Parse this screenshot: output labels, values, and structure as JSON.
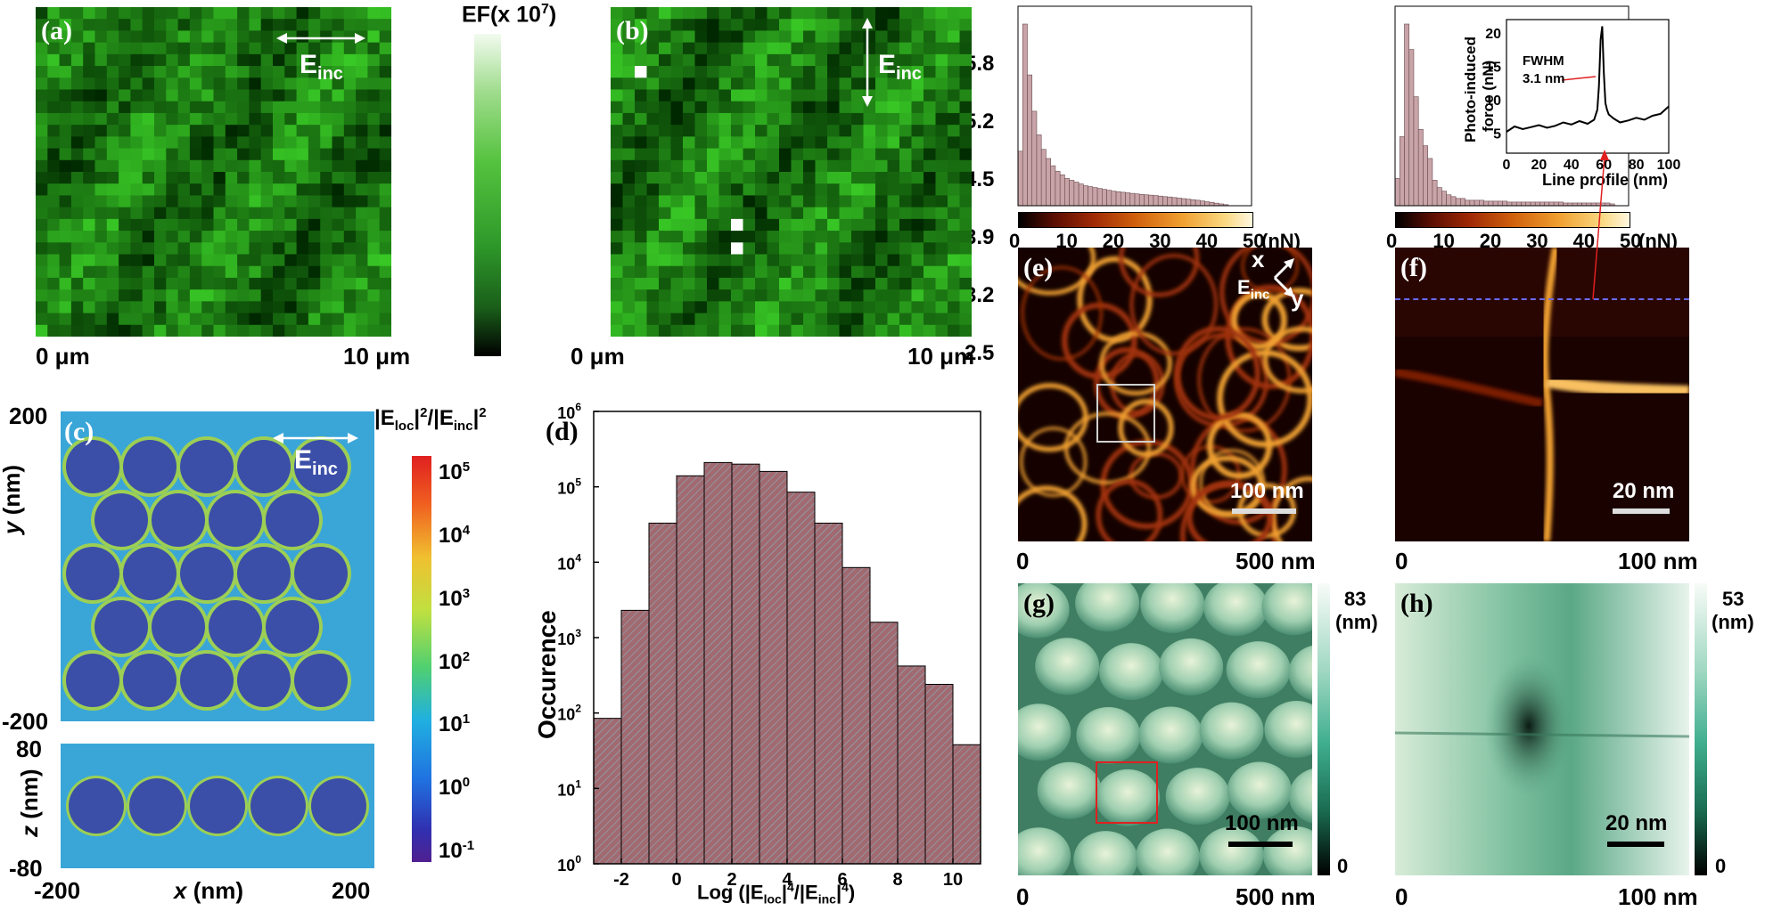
{
  "panels": {
    "a": {
      "label": "(a)",
      "field": "E",
      "field_sub": "inc",
      "x_start": "0 μm",
      "x_end": "10 μm"
    },
    "b": {
      "label": "(b)",
      "field": "E",
      "field_sub": "inc",
      "x_start": "0 μm",
      "x_end": "10 μm"
    },
    "ef_colorbar": {
      "title": "EF(x 10",
      "title_exp": "7",
      "title_close": ")",
      "ticks": [
        "5.8",
        "5.2",
        "4.5",
        "3.9",
        "3.2",
        "2.5"
      ]
    },
    "c": {
      "label": "(c)",
      "field": "E",
      "field_sub": "inc",
      "cb_title": "|E",
      "cb_sub1": "loc",
      "cb_mid": "|",
      "cb_sup1": "2",
      "cb_mid2": "/|E",
      "cb_sub2": "inc",
      "cb_end": "|",
      "cb_sup2": "2",
      "cb_ticks": [
        {
          "b": "10",
          "e": "5"
        },
        {
          "b": "10",
          "e": "4"
        },
        {
          "b": "10",
          "e": "3"
        },
        {
          "b": "10",
          "e": "2"
        },
        {
          "b": "10",
          "e": "1"
        },
        {
          "b": "10",
          "e": "0"
        },
        {
          "b": "10",
          "e": "-1"
        }
      ],
      "y_label_v": "y",
      "y_unit": "(nm)",
      "z_label_v": "z",
      "z_unit": "(nm)",
      "x_label_v": "x",
      "x_unit": "(nm)",
      "y_ticks": [
        "200",
        "-200"
      ],
      "z_ticks": [
        "80",
        "-80"
      ],
      "x_ticks": [
        "-200",
        "200"
      ]
    },
    "d": {
      "label": "(d)",
      "ylabel": "Occurence",
      "xlabel_pre": "Log (|E",
      "xlabel_sub1": "loc",
      "xlabel_mid": "|",
      "xlabel_sup1": "4",
      "xlabel_mid2": "/|E",
      "xlabel_sub2": "inc",
      "xlabel_end": "|",
      "xlabel_sup2": "4",
      "xlabel_close": ")"
    },
    "e": {
      "label": "(e)",
      "x_start": "0",
      "x_end": "500 nm",
      "scale": "100 nm",
      "ax_x": "x",
      "ax_y": "y",
      "field": "E",
      "field_sub": "inc"
    },
    "f": {
      "label": "(f)",
      "x_start": "0",
      "x_end": "100 nm",
      "scale": "20 nm",
      "inset_ylabel1": "Photo-induced",
      "inset_ylabel2": "force (nN)",
      "inset_xlabel": "Line profile (nm)",
      "inset_xticks": [
        "0",
        "20",
        "40",
        "60",
        "80",
        "100"
      ],
      "inset_yticks": [
        "20",
        "15",
        "10",
        "5"
      ],
      "fwhm1": "FWHM",
      "fwhm2": "3.1 nm"
    },
    "g": {
      "label": "(g)",
      "x_start": "0",
      "x_end": "500 nm",
      "scale": "100 nm",
      "cb_max": "83",
      "cb_unit": "(nm)",
      "cb_min": "0"
    },
    "h": {
      "label": "(h)",
      "x_start": "0",
      "x_end": "100 nm",
      "scale": "20 nm",
      "cb_max": "53",
      "cb_unit": "(nm)",
      "cb_min": "0"
    },
    "nn_bar_e": {
      "ticks": [
        "0",
        "10",
        "20",
        "30",
        "40",
        "50"
      ],
      "unit": "(nN)"
    },
    "nn_bar_f": {
      "ticks": [
        "0",
        "10",
        "20",
        "30",
        "40",
        "50"
      ],
      "unit": "(nN)"
    }
  },
  "chart_data": [
    {
      "type": "bar",
      "panel": "d",
      "ylabel": "Occurence",
      "xlabel": "Log (|Eloc|4/|Einc|4)",
      "yscale": "log",
      "ylim": [
        1,
        1000000
      ],
      "xlim": [
        -3,
        11
      ],
      "xticks": [
        "-2",
        "0",
        "2",
        "4",
        "6",
        "8",
        "10"
      ],
      "yticks": [
        {
          "b": "10",
          "e": "6"
        },
        {
          "b": "10",
          "e": "5"
        },
        {
          "b": "10",
          "e": "4"
        },
        {
          "b": "10",
          "e": "3"
        },
        {
          "b": "10",
          "e": "2"
        },
        {
          "b": "10",
          "e": "1"
        },
        {
          "b": "10",
          "e": "0"
        }
      ],
      "bin_width": 1,
      "bin_centers": [
        -2.5,
        -1.5,
        -0.5,
        0.5,
        1.5,
        2.5,
        3.5,
        4.5,
        5.5,
        6.5,
        7.5,
        8.5,
        9.5,
        10.5
      ],
      "values": [
        85,
        2300,
        33000,
        140000,
        210000,
        200000,
        160000,
        85000,
        33000,
        8500,
        1600,
        420,
        240,
        38
      ]
    },
    {
      "type": "bar",
      "panel": "e-histogram",
      "xlim": [
        0,
        50
      ],
      "unit": "nN",
      "bin_width": 1,
      "bin_start": 1,
      "values": [
        30,
        100,
        72,
        52,
        39,
        31,
        26,
        22,
        19,
        17,
        15,
        14,
        13,
        12,
        11,
        10.5,
        10,
        9.5,
        9,
        8.5,
        8,
        7.7,
        7.4,
        7.1,
        6.8,
        6.5,
        6.2,
        6,
        5.8,
        5.6,
        5.3,
        5,
        4.8,
        4.5,
        4.2,
        3.9,
        3.6,
        3.3,
        3,
        2.6,
        2.2,
        1.8,
        1.4,
        1,
        0.6
      ]
    },
    {
      "type": "bar",
      "panel": "f-histogram",
      "xlim": [
        0,
        50
      ],
      "unit": "nN",
      "bin_width": 1,
      "bin_start": 1,
      "values": [
        15,
        38,
        100,
        86,
        60,
        42,
        33,
        26,
        14,
        10,
        8,
        6,
        5,
        4,
        4,
        3,
        3,
        3,
        3,
        2.5,
        2.5,
        2.5,
        2.5,
        2.5,
        2,
        2,
        2,
        2,
        2,
        2,
        2,
        2,
        2,
        2,
        2,
        2,
        1.5,
        1.5,
        1.5,
        1.5,
        1.5,
        1.5,
        1.5,
        1.5,
        1.5,
        1.5,
        1
      ]
    },
    {
      "type": "line",
      "panel": "f-inset",
      "xlabel": "Line profile (nm)",
      "ylabel": "Photo-induced force (nN)",
      "xlim": [
        0,
        100
      ],
      "ylim": [
        2,
        22
      ],
      "x": [
        0,
        5,
        10,
        15,
        20,
        25,
        30,
        35,
        40,
        45,
        50,
        54,
        56,
        57,
        58,
        59,
        60,
        61,
        62,
        63,
        64,
        66,
        70,
        75,
        80,
        85,
        90,
        95,
        100
      ],
      "y": [
        5.2,
        6,
        5.6,
        5.9,
        6.2,
        5.8,
        6.1,
        6.6,
        6.3,
        6.8,
        6.4,
        7,
        8.5,
        12,
        19,
        21,
        14,
        9.5,
        8.5,
        7.8,
        7.6,
        7.2,
        6.6,
        6.9,
        7.3,
        7,
        7.6,
        7.9,
        9
      ]
    }
  ]
}
